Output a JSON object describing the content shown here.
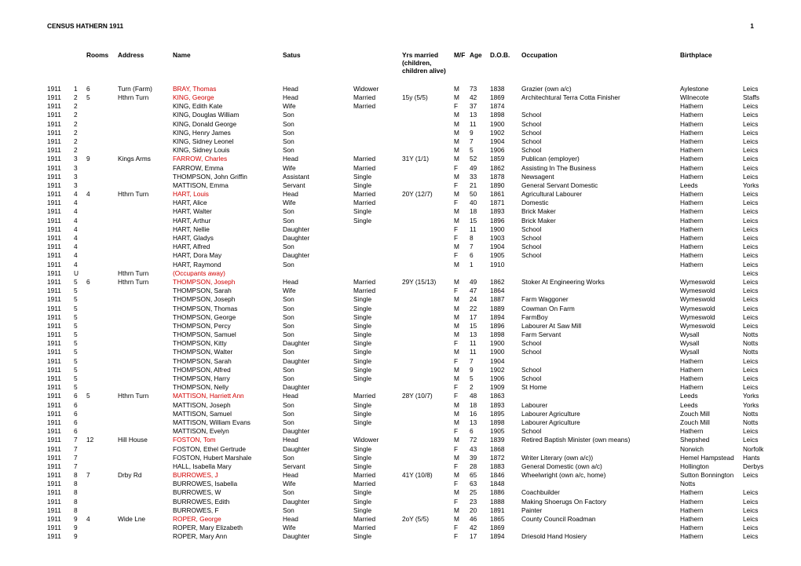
{
  "title": "CENSUS HATHERN 1911",
  "page_number": "1",
  "columns": {
    "rooms": "Rooms",
    "address": "Address",
    "name": "Name",
    "status": "Satus",
    "yrs_married": "Yrs married (children, children alive)",
    "mf": "M/F",
    "age": "Age",
    "dob": "D.O.B.",
    "occupation": "Occupation",
    "birthplace": "Birthplace"
  },
  "colors": {
    "text": "#000000",
    "highlight": "#d00000",
    "background": "#ffffff"
  },
  "rows": [
    {
      "year": "1911",
      "sched": "1",
      "rooms": "6",
      "address": "Turn (Farm)",
      "name": "BRAY, Thomas",
      "red": true,
      "status": "Head",
      "marital": "Widower",
      "yrs": "",
      "mf": "M",
      "age": "73",
      "dob": "1838",
      "occupation": "Grazier (own a/c)",
      "birthplace": "Aylestone",
      "county": "Leics"
    },
    {
      "year": "1911",
      "sched": "2",
      "rooms": "5",
      "address": "Hthrn Turn",
      "name": "KING, George",
      "red": true,
      "status": "Head",
      "marital": "Married",
      "yrs": "15y (5/5)",
      "mf": "M",
      "age": "42",
      "dob": "1869",
      "occupation": "Architechtural Terra Cotta Finisher",
      "birthplace": "Wilnecote",
      "county": "Staffs"
    },
    {
      "year": "1911",
      "sched": "2",
      "rooms": "",
      "address": "",
      "name": "KING, Edith Kate",
      "status": "Wife",
      "marital": "Married",
      "yrs": "",
      "mf": "F",
      "age": "37",
      "dob": "1874",
      "occupation": "",
      "birthplace": "Hathern",
      "county": "Leics"
    },
    {
      "year": "1911",
      "sched": "2",
      "rooms": "",
      "address": "",
      "name": "KING, Douglas William",
      "status": "Son",
      "marital": "",
      "yrs": "",
      "mf": "M",
      "age": "13",
      "dob": "1898",
      "occupation": "School",
      "birthplace": "Hathern",
      "county": "Leics"
    },
    {
      "year": "1911",
      "sched": "2",
      "rooms": "",
      "address": "",
      "name": "KING, Donald George",
      "status": "Son",
      "marital": "",
      "yrs": "",
      "mf": "M",
      "age": "11",
      "dob": "1900",
      "occupation": "School",
      "birthplace": "Hathern",
      "county": "Leics"
    },
    {
      "year": "1911",
      "sched": "2",
      "rooms": "",
      "address": "",
      "name": "KING, Henry James",
      "status": "Son",
      "marital": "",
      "yrs": "",
      "mf": "M",
      "age": "9",
      "dob": "1902",
      "occupation": "School",
      "birthplace": "Hathern",
      "county": "Leics"
    },
    {
      "year": "1911",
      "sched": "2",
      "rooms": "",
      "address": "",
      "name": "KING, Sidney Leonel",
      "status": "Son",
      "marital": "",
      "yrs": "",
      "mf": "M",
      "age": "7",
      "dob": "1904",
      "occupation": "School",
      "birthplace": "Hathern",
      "county": "Leics"
    },
    {
      "year": "1911",
      "sched": "2",
      "rooms": "",
      "address": "",
      "name": "KING, Sidney Louis",
      "status": "Son",
      "marital": "",
      "yrs": "",
      "mf": "M",
      "age": "5",
      "dob": "1906",
      "occupation": "School",
      "birthplace": "Hathern",
      "county": "Leics"
    },
    {
      "year": "1911",
      "sched": "3",
      "rooms": "9",
      "address": "Kings Arms",
      "name": "FARROW, Charles",
      "red": true,
      "status": "Head",
      "marital": "Married",
      "yrs": "31Y (1/1)",
      "mf": "M",
      "age": "52",
      "dob": "1859",
      "occupation": "Publican (employer)",
      "birthplace": "Hathern",
      "county": "Leics"
    },
    {
      "year": "1911",
      "sched": "3",
      "rooms": "",
      "address": "",
      "name": "FARROW, Emma",
      "status": "Wife",
      "marital": "Married",
      "yrs": "",
      "mf": "F",
      "age": "49",
      "dob": "1862",
      "occupation": "Assisting In The Business",
      "birthplace": "Hathern",
      "county": "Leics"
    },
    {
      "year": "1911",
      "sched": "3",
      "rooms": "",
      "address": "",
      "name": "THOMPSON, John Griffin",
      "status": "Assistant",
      "marital": "Single",
      "yrs": "",
      "mf": "M",
      "age": "33",
      "dob": "1878",
      "occupation": "Newsagent",
      "birthplace": "Hathern",
      "county": "Leics"
    },
    {
      "year": "1911",
      "sched": "3",
      "rooms": "",
      "address": "",
      "name": "MATTISON, Emma",
      "status": "Servant",
      "marital": "Single",
      "yrs": "",
      "mf": "F",
      "age": "21",
      "dob": "1890",
      "occupation": "General Servant Domestic",
      "birthplace": "Leeds",
      "county": "Yorks"
    },
    {
      "year": "1911",
      "sched": "4",
      "rooms": "4",
      "address": "Hthrn Turn",
      "name": "HART, Louis",
      "red": true,
      "status": "Head",
      "marital": "Married",
      "yrs": "20Y (12/7)",
      "mf": "M",
      "age": "50",
      "dob": "1861",
      "occupation": "Agricultural Labourer",
      "birthplace": "Hathern",
      "county": "Leics"
    },
    {
      "year": "1911",
      "sched": "4",
      "rooms": "",
      "address": "",
      "name": "HART, Alice",
      "status": "Wife",
      "marital": "Married",
      "yrs": "",
      "mf": "F",
      "age": "40",
      "dob": "1871",
      "occupation": "Domestic",
      "birthplace": "Hathern",
      "county": "Leics"
    },
    {
      "year": "1911",
      "sched": "4",
      "rooms": "",
      "address": "",
      "name": "HART, Walter",
      "status": "Son",
      "marital": "Single",
      "yrs": "",
      "mf": "M",
      "age": "18",
      "dob": "1893",
      "occupation": "Brick Maker",
      "birthplace": "Hathern",
      "county": "Leics"
    },
    {
      "year": "1911",
      "sched": "4",
      "rooms": "",
      "address": "",
      "name": "HART, Arthur",
      "status": "Son",
      "marital": "Single",
      "yrs": "",
      "mf": "M",
      "age": "15",
      "dob": "1896",
      "occupation": "Brick Maker",
      "birthplace": "Hathern",
      "county": "Leics"
    },
    {
      "year": "1911",
      "sched": "4",
      "rooms": "",
      "address": "",
      "name": "HART, Nellie",
      "status": "Daughter",
      "marital": "",
      "yrs": "",
      "mf": "F",
      "age": "11",
      "dob": "1900",
      "occupation": "School",
      "birthplace": "Hathern",
      "county": "Leics"
    },
    {
      "year": "1911",
      "sched": "4",
      "rooms": "",
      "address": "",
      "name": "HART, Gladys",
      "status": "Daughter",
      "marital": "",
      "yrs": "",
      "mf": "F",
      "age": "8",
      "dob": "1903",
      "occupation": "School",
      "birthplace": "Hathern",
      "county": "Leics"
    },
    {
      "year": "1911",
      "sched": "4",
      "rooms": "",
      "address": "",
      "name": "HART, Alfred",
      "status": "Son",
      "marital": "",
      "yrs": "",
      "mf": "M",
      "age": "7",
      "dob": "1904",
      "occupation": "School",
      "birthplace": "Hathern",
      "county": "Leics"
    },
    {
      "year": "1911",
      "sched": "4",
      "rooms": "",
      "address": "",
      "name": "HART, Dora May",
      "status": "Daughter",
      "marital": "",
      "yrs": "",
      "mf": "F",
      "age": "6",
      "dob": "1905",
      "occupation": "School",
      "birthplace": "Hathern",
      "county": "Leics"
    },
    {
      "year": "1911",
      "sched": "4",
      "rooms": "",
      "address": "",
      "name": "HART, Raymond",
      "status": "Son",
      "marital": "",
      "yrs": "",
      "mf": "M",
      "age": "1",
      "dob": "1910",
      "occupation": "",
      "birthplace": "Hathern",
      "county": "Leics"
    },
    {
      "year": "1911",
      "sched": "U",
      "rooms": "",
      "address": "Hthrn Turn",
      "name": "(Occupants away)",
      "red": true,
      "status": "",
      "marital": "",
      "yrs": "",
      "mf": "",
      "age": "",
      "dob": "",
      "occupation": "",
      "birthplace": "",
      "county": "Leics"
    },
    {
      "year": "1911",
      "sched": "5",
      "rooms": "6",
      "address": "Hthrn Turn",
      "name": "THOMPSON, Joseph",
      "red": true,
      "status": "Head",
      "marital": "Married",
      "yrs": "29Y (15/13)",
      "mf": "M",
      "age": "49",
      "dob": "1862",
      "occupation": "Stoker At Engineering Works",
      "birthplace": "Wymeswold",
      "county": "Leics"
    },
    {
      "year": "1911",
      "sched": "5",
      "rooms": "",
      "address": "",
      "name": "THOMPSON, Sarah",
      "status": "Wife",
      "marital": "Married",
      "yrs": "",
      "mf": "F",
      "age": "47",
      "dob": "1864",
      "occupation": "",
      "birthplace": "Wymeswold",
      "county": "Leics"
    },
    {
      "year": "1911",
      "sched": "5",
      "rooms": "",
      "address": "",
      "name": "THOMPSON, Joseph",
      "status": "Son",
      "marital": "Single",
      "yrs": "",
      "mf": "M",
      "age": "24",
      "dob": "1887",
      "occupation": "Farm Waggoner",
      "birthplace": "Wymeswold",
      "county": "Leics"
    },
    {
      "year": "1911",
      "sched": "5",
      "rooms": "",
      "address": "",
      "name": "THOMPSON, Thomas",
      "status": "Son",
      "marital": "Single",
      "yrs": "",
      "mf": "M",
      "age": "22",
      "dob": "1889",
      "occupation": "Cowman On Farm",
      "birthplace": "Wymeswold",
      "county": "Leics"
    },
    {
      "year": "1911",
      "sched": "5",
      "rooms": "",
      "address": "",
      "name": "THOMPSON, George",
      "status": "Son",
      "marital": "Single",
      "yrs": "",
      "mf": "M",
      "age": "17",
      "dob": "1894",
      "occupation": "FarmBoy",
      "birthplace": "Wymeswold",
      "county": "Leics"
    },
    {
      "year": "1911",
      "sched": "5",
      "rooms": "",
      "address": "",
      "name": "THOMPSON, Percy",
      "status": "Son",
      "marital": "Single",
      "yrs": "",
      "mf": "M",
      "age": "15",
      "dob": "1896",
      "occupation": "Labourer At Saw Mill",
      "birthplace": "Wymeswold",
      "county": "Leics"
    },
    {
      "year": "1911",
      "sched": "5",
      "rooms": "",
      "address": "",
      "name": "THOMPSON, Samuel",
      "status": "Son",
      "marital": "Single",
      "yrs": "",
      "mf": "M",
      "age": "13",
      "dob": "1898",
      "occupation": "Farm Servant",
      "birthplace": "Wysall",
      "county": "Notts"
    },
    {
      "year": "1911",
      "sched": "5",
      "rooms": "",
      "address": "",
      "name": "THOMPSON, Kitty",
      "status": "Daughter",
      "marital": "Single",
      "yrs": "",
      "mf": "F",
      "age": "11",
      "dob": "1900",
      "occupation": "School",
      "birthplace": "Wysall",
      "county": "Notts"
    },
    {
      "year": "1911",
      "sched": "5",
      "rooms": "",
      "address": "",
      "name": "THOMPSON, Walter",
      "status": "Son",
      "marital": "Single",
      "yrs": "",
      "mf": "M",
      "age": "11",
      "dob": "1900",
      "occupation": "School",
      "birthplace": "Wysall",
      "county": "Notts"
    },
    {
      "year": "1911",
      "sched": "5",
      "rooms": "",
      "address": "",
      "name": "THOMPSON, Sarah",
      "status": "Daughter",
      "marital": "Single",
      "yrs": "",
      "mf": "F",
      "age": "7",
      "dob": "1904",
      "occupation": "",
      "birthplace": "Hathern",
      "county": "Leics"
    },
    {
      "year": "1911",
      "sched": "5",
      "rooms": "",
      "address": "",
      "name": "THOMPSON, Alfred",
      "status": "Son",
      "marital": "Single",
      "yrs": "",
      "mf": "M",
      "age": "9",
      "dob": "1902",
      "occupation": "School",
      "birthplace": "Hathern",
      "county": "Leics"
    },
    {
      "year": "1911",
      "sched": "5",
      "rooms": "",
      "address": "",
      "name": "THOMPSON, Harry",
      "status": "Son",
      "marital": "Single",
      "yrs": "",
      "mf": "M",
      "age": "5",
      "dob": "1906",
      "occupation": "School",
      "birthplace": "Hathern",
      "county": "Leics"
    },
    {
      "year": "1911",
      "sched": "5",
      "rooms": "",
      "address": "",
      "name": "THOMPSON, Nelly",
      "status": "Daughter",
      "marital": "",
      "yrs": "",
      "mf": "F",
      "age": "2",
      "dob": "1909",
      "occupation": "St Home",
      "birthplace": "Hathern",
      "county": "Leics"
    },
    {
      "year": "1911",
      "sched": "6",
      "rooms": "5",
      "address": "Hthrn Turn",
      "name": "MATTISON, Harriett Ann",
      "red": true,
      "status": "Head",
      "marital": "Married",
      "yrs": "28Y (10/7)",
      "mf": "F",
      "age": "48",
      "dob": "1863",
      "occupation": "",
      "birthplace": "Leeds",
      "county": "Yorks"
    },
    {
      "year": "1911",
      "sched": "6",
      "rooms": "",
      "address": "",
      "name": "MATTISON, Joseph",
      "status": "Son",
      "marital": "Single",
      "yrs": "",
      "mf": "M",
      "age": "18",
      "dob": "1893",
      "occupation": "Labourer",
      "birthplace": "Leeds",
      "county": "Yorks"
    },
    {
      "year": "1911",
      "sched": "6",
      "rooms": "",
      "address": "",
      "name": "MATTISON, Samuel",
      "status": "Son",
      "marital": "Single",
      "yrs": "",
      "mf": "M",
      "age": "16",
      "dob": "1895",
      "occupation": "Labourer Agriculture",
      "birthplace": "Zouch Mill",
      "county": "Notts"
    },
    {
      "year": "1911",
      "sched": "6",
      "rooms": "",
      "address": "",
      "name": "MATTISON, William Evans",
      "status": "Son",
      "marital": "Single",
      "yrs": "",
      "mf": "M",
      "age": "13",
      "dob": "1898",
      "occupation": "Labourer Agriculture",
      "birthplace": "Zouch Mill",
      "county": "Notts"
    },
    {
      "year": "1911",
      "sched": "6",
      "rooms": "",
      "address": "",
      "name": "MATTISON, Evelyn",
      "status": "Daughter",
      "marital": "",
      "yrs": "",
      "mf": "F",
      "age": "6",
      "dob": "1905",
      "occupation": "School",
      "birthplace": "Hathern",
      "county": "Leics"
    },
    {
      "year": "1911",
      "sched": "7",
      "rooms": "12",
      "address": "Hill House",
      "name": "FOSTON, Tom",
      "red": true,
      "status": "Head",
      "marital": "Widower",
      "yrs": "",
      "mf": "M",
      "age": "72",
      "dob": "1839",
      "occupation": "Retired Baptish Minister (own means)",
      "birthplace": "Shepshed",
      "county": "Leics"
    },
    {
      "year": "1911",
      "sched": "7",
      "rooms": "",
      "address": "",
      "name": "FOSTON, Ethel Gertrude",
      "status": "Daughter",
      "marital": "Single",
      "yrs": "",
      "mf": "F",
      "age": "43",
      "dob": "1868",
      "occupation": "",
      "birthplace": "Norwich",
      "county": "Norfolk"
    },
    {
      "year": "1911",
      "sched": "7",
      "rooms": "",
      "address": "",
      "name": "FOSTON, Hubert Marshale",
      "status": "Son",
      "marital": "Single",
      "yrs": "",
      "mf": "M",
      "age": "39",
      "dob": "1872",
      "occupation": "Writer Literary (own a/c))",
      "birthplace": "Hemel Hampstead",
      "county": "Hants"
    },
    {
      "year": "1911",
      "sched": "7",
      "rooms": "",
      "address": "",
      "name": "HALL, Isabella Mary",
      "status": "Servant",
      "marital": "Single",
      "yrs": "",
      "mf": "F",
      "age": "28",
      "dob": "1883",
      "occupation": "General Domestic (own a/c)",
      "birthplace": "Hollington",
      "county": "Derbys"
    },
    {
      "year": "1911",
      "sched": "8",
      "rooms": "7",
      "address": "Drby Rd",
      "name": "BURROWES, J",
      "red": true,
      "status": "Head",
      "marital": "Married",
      "yrs": "41Y (10/8)",
      "mf": "M",
      "age": "65",
      "dob": "1846",
      "occupation": "Wheelwright (own a/c, home)",
      "birthplace": "Sutton Bonnington",
      "county": "Leics"
    },
    {
      "year": "1911",
      "sched": "8",
      "rooms": "",
      "address": "",
      "name": "BURROWES, Isabella",
      "status": "Wife",
      "marital": "Married",
      "yrs": "",
      "mf": "F",
      "age": "63",
      "dob": "1848",
      "occupation": "",
      "birthplace": "Notts",
      "county": ""
    },
    {
      "year": "1911",
      "sched": "8",
      "rooms": "",
      "address": "",
      "name": "BURROWES, W",
      "status": "Son",
      "marital": "Single",
      "yrs": "",
      "mf": "M",
      "age": "25",
      "dob": "1886",
      "occupation": "Coachbuilder",
      "birthplace": "Hathern",
      "county": "Leics"
    },
    {
      "year": "1911",
      "sched": "8",
      "rooms": "",
      "address": "",
      "name": "BURROWES, Edith",
      "status": "Daughter",
      "marital": "Single",
      "yrs": "",
      "mf": "F",
      "age": "23",
      "dob": "1888",
      "occupation": "Making Shoerugs On Factory",
      "birthplace": "Hathern",
      "county": "Leics"
    },
    {
      "year": "1911",
      "sched": "8",
      "rooms": "",
      "address": "",
      "name": "BURROWES, F",
      "status": "Son",
      "marital": "Single",
      "yrs": "",
      "mf": "M",
      "age": "20",
      "dob": "1891",
      "occupation": "Painter",
      "birthplace": "Hathern",
      "county": "Leics"
    },
    {
      "year": "1911",
      "sched": "9",
      "rooms": "4",
      "address": "Wide Lne",
      "name": "ROPER, George",
      "red": true,
      "status": "Head",
      "marital": "Married",
      "yrs": "2oY (5/5)",
      "mf": "M",
      "age": "46",
      "dob": "1865",
      "occupation": "County Council Roadman",
      "birthplace": "Hathern",
      "county": "Leics"
    },
    {
      "year": "1911",
      "sched": "9",
      "rooms": "",
      "address": "",
      "name": "ROPER, Mary Elizabeth",
      "status": "Wife",
      "marital": "Married",
      "yrs": "",
      "mf": "F",
      "age": "42",
      "dob": "1869",
      "occupation": "",
      "birthplace": "Hathern",
      "county": "Leics"
    },
    {
      "year": "1911",
      "sched": "9",
      "rooms": "",
      "address": "",
      "name": "ROPER, Mary Ann",
      "status": "Daughter",
      "marital": "Single",
      "yrs": "",
      "mf": "F",
      "age": "17",
      "dob": "1894",
      "occupation": "Driesold Hand Hosiery",
      "birthplace": "Hathern",
      "county": "Leics"
    }
  ]
}
